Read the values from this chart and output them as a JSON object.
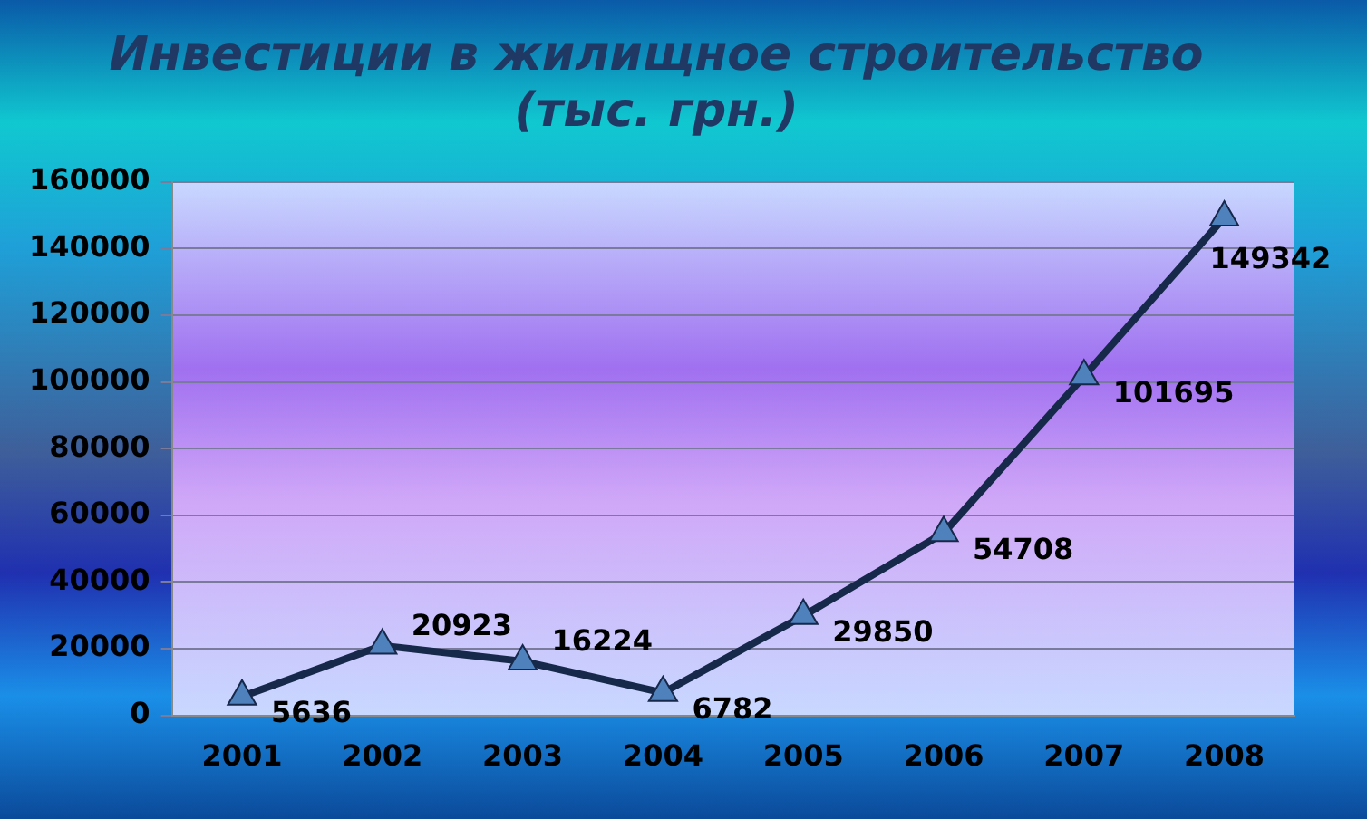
{
  "chart_data": {
    "type": "line",
    "title": "Инвестиции в жилищное строительство\n(тыс. грн.)",
    "categories": [
      "2001",
      "2002",
      "2003",
      "2004",
      "2005",
      "2006",
      "2007",
      "2008"
    ],
    "values": [
      5636,
      20923,
      16224,
      6782,
      29850,
      54708,
      101695,
      149342
    ],
    "color": "#17294a",
    "marker": "triangle",
    "data_labels": true,
    "grid": "y",
    "legend": false,
    "ylim": [
      0,
      160000
    ],
    "yticks": [
      0,
      20000,
      40000,
      60000,
      80000,
      100000,
      120000,
      140000,
      160000
    ]
  }
}
